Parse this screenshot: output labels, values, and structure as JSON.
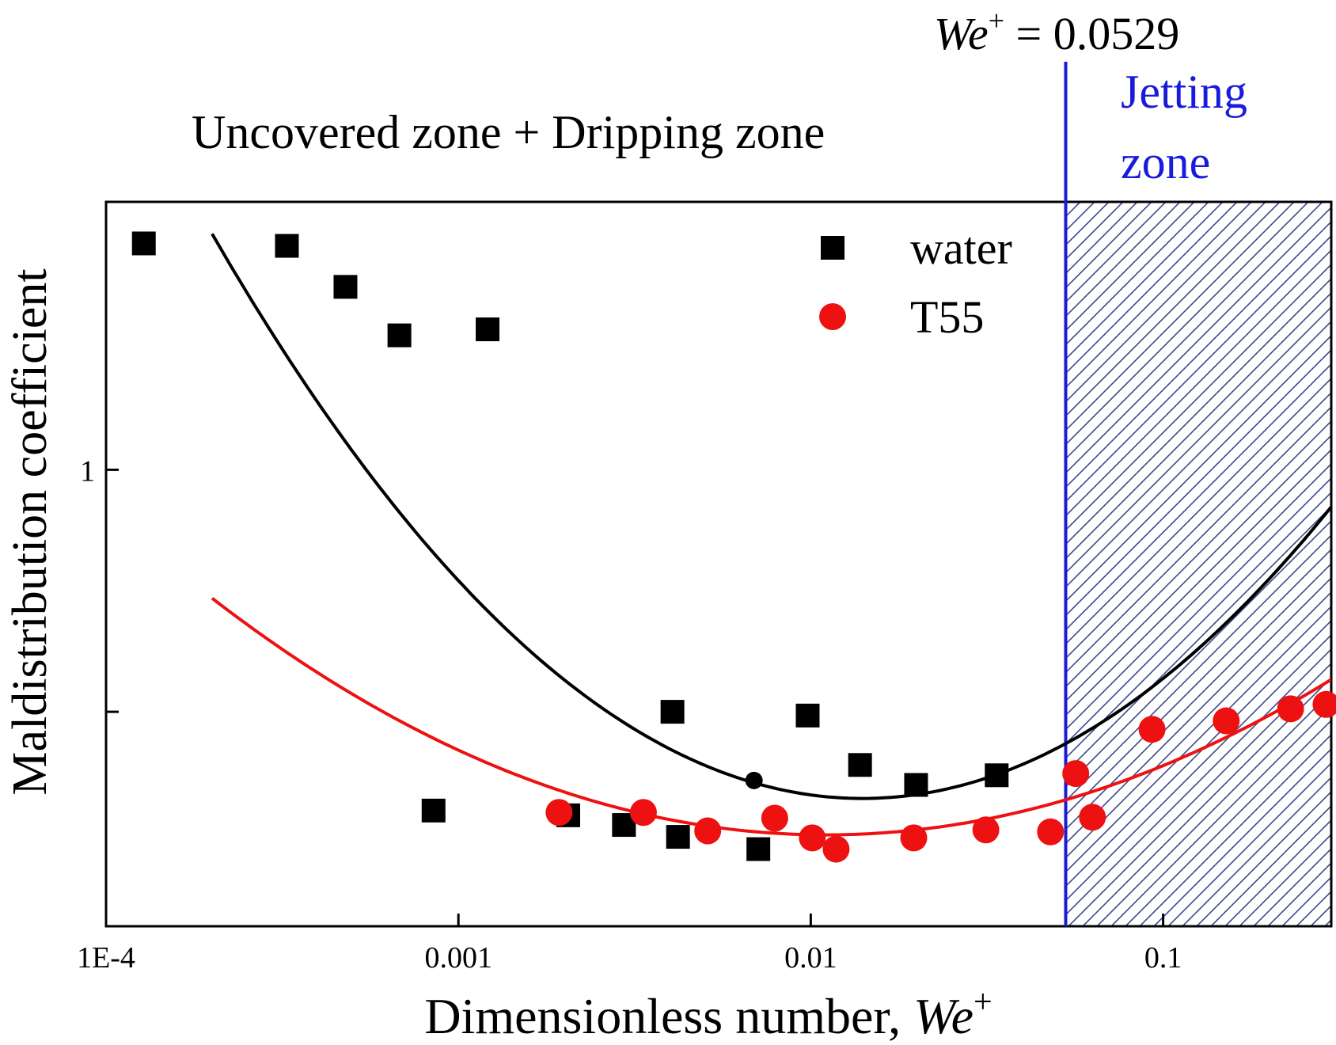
{
  "chart_data": {
    "type": "scatter",
    "title": "",
    "xlabel": "Dimensionless number, ",
    "xlabel_italic": "We",
    "xlabel_sup": "+",
    "ylabel": "Maldistribution coefficient",
    "x_scale": "log",
    "y_scale": "log",
    "xlim": [
      0.0001,
      0.3
    ],
    "ylim": [
      0.335,
      1.9
    ],
    "x_ticks": [
      {
        "value": 0.0001,
        "label": "1E-4"
      },
      {
        "value": 0.001,
        "label": "0.001"
      },
      {
        "value": 0.01,
        "label": "0.01"
      },
      {
        "value": 0.1,
        "label": "0.1"
      }
    ],
    "y_ticks": [
      {
        "value": 1,
        "label": "1"
      },
      {
        "value": 0.56,
        "label": ""
      }
    ],
    "grid": false,
    "legend_position": "top-right",
    "annotations": {
      "threshold_prefix": "We",
      "threshold_sup": "+",
      "threshold_text": " = 0.0529",
      "threshold_value": 0.0529,
      "left_zone": "Uncovered zone + Dripping zone",
      "right_zone_line1": "Jetting",
      "right_zone_line2": "zone"
    },
    "colors": {
      "water": "#000000",
      "t55": "#ee1111",
      "threshold": "#1a1adc",
      "hatch": "#3a4a8a"
    },
    "series": [
      {
        "name": "water",
        "marker": "square",
        "points": [
          [
            0.000128,
            1.72
          ],
          [
            0.000326,
            1.71
          ],
          [
            0.000478,
            1.55
          ],
          [
            0.00068,
            1.38
          ],
          [
            0.00121,
            1.4
          ],
          [
            0.00085,
            0.442
          ],
          [
            0.00205,
            0.437
          ],
          [
            0.00295,
            0.427
          ],
          [
            0.0042,
            0.415
          ],
          [
            0.00405,
            0.56
          ],
          [
            0.0071,
            0.403
          ],
          [
            0.0098,
            0.555
          ],
          [
            0.0138,
            0.493
          ],
          [
            0.0199,
            0.47
          ],
          [
            0.0337,
            0.481
          ]
        ],
        "fit": {
          "type": "quadratic-log",
          "x_range": [
            0.0002,
            0.3
          ],
          "y_at_start": 1.76,
          "y_min": 0.455,
          "x_at_min": 0.014,
          "y_at_end": 0.915
        },
        "fit_marker": [
          0.0069,
          0.475
        ]
      },
      {
        "name": "T55",
        "marker": "circle",
        "points": [
          [
            0.00193,
            0.44
          ],
          [
            0.00335,
            0.44
          ],
          [
            0.0051,
            0.421
          ],
          [
            0.0079,
            0.434
          ],
          [
            0.0101,
            0.414
          ],
          [
            0.0118,
            0.403
          ],
          [
            0.0196,
            0.414
          ],
          [
            0.0314,
            0.422
          ],
          [
            0.0479,
            0.42
          ],
          [
            0.0565,
            0.483
          ],
          [
            0.063,
            0.435
          ],
          [
            0.093,
            0.537
          ],
          [
            0.151,
            0.548
          ],
          [
            0.23,
            0.564
          ],
          [
            0.29,
            0.57
          ]
        ],
        "fit": {
          "type": "quadratic-log",
          "x_range": [
            0.0002,
            0.3
          ],
          "y_at_start": 0.735,
          "y_min": 0.417,
          "x_at_min": 0.011,
          "y_at_end": 0.605
        }
      }
    ]
  }
}
